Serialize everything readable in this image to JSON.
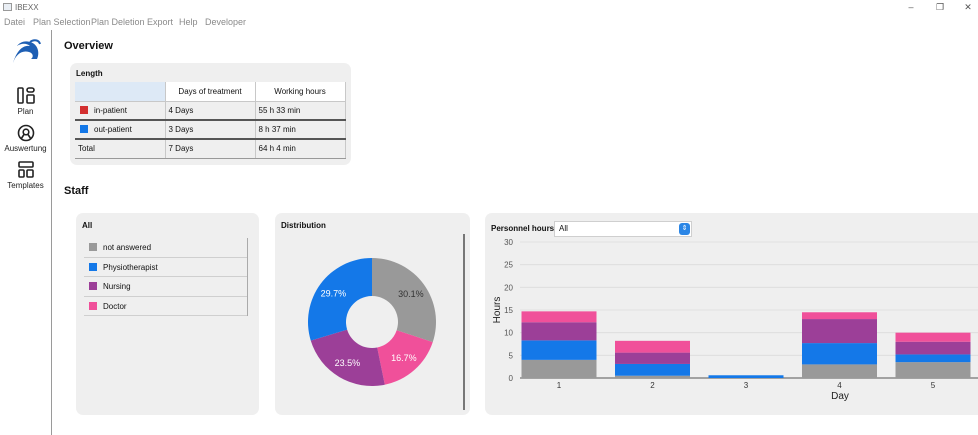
{
  "app": {
    "title": "IBEXX"
  },
  "menu": [
    "Datei",
    "Plan Selection",
    "Plan Deletion",
    "Export",
    "Help",
    "Developer"
  ],
  "sidebar": {
    "items": [
      {
        "label": "Plan",
        "icon": "plan-icon"
      },
      {
        "label": "Auswertung",
        "icon": "evaluation-icon"
      },
      {
        "label": "Templates",
        "icon": "templates-icon"
      }
    ],
    "logo_icon": "ibex-logo-icon"
  },
  "overview": {
    "title": "Overview",
    "length": {
      "label": "Length",
      "columns": [
        "",
        "Days of treatment",
        "Working hours"
      ],
      "rows": [
        {
          "name": "in-patient",
          "color": "#d32f2f",
          "days": "4 Days",
          "hours": "55 h 33 min"
        },
        {
          "name": "out-patient",
          "color": "#1478e8",
          "days": "3 Days",
          "hours": "8 h 37 min"
        },
        {
          "name": "Total",
          "color": "",
          "days": "7 Days",
          "hours": "64 h 4 min"
        }
      ]
    }
  },
  "staff": {
    "title": "Staff",
    "all": {
      "label": "All",
      "legend": [
        {
          "name": "not answered",
          "color": "#999999"
        },
        {
          "name": "Physiotherapist",
          "color": "#1478e8"
        },
        {
          "name": "Nursing",
          "color": "#9c3f98"
        },
        {
          "name": "Doctor",
          "color": "#f0509a"
        }
      ]
    },
    "distribution": {
      "label": "Distribution"
    },
    "personnel": {
      "label": "Personnel hours",
      "selected": "All"
    }
  },
  "colors": {
    "not_answered": "#999999",
    "physiotherapist": "#1478e8",
    "nursing": "#9c3f98",
    "doctor": "#f0509a"
  },
  "chart_data": [
    {
      "type": "pie",
      "slices": [
        {
          "category": "not answered",
          "value": 30.1,
          "label": "30.1%"
        },
        {
          "category": "Doctor",
          "value": 16.7,
          "label": "16.7%"
        },
        {
          "category": "Nursing",
          "value": 23.5,
          "label": "23.5%"
        },
        {
          "category": "Physiotherapist",
          "value": 29.7,
          "label": "29.7%"
        }
      ]
    },
    {
      "type": "bar",
      "stacked": true,
      "categories": [
        "1",
        "2",
        "3",
        "4",
        "5"
      ],
      "xlabel": "Day",
      "ylabel": "Hours",
      "ylim": [
        0,
        30
      ],
      "yticks": [
        0,
        5,
        10,
        15,
        20,
        25,
        30
      ],
      "series": [
        {
          "name": "not answered",
          "values": [
            4,
            0.5,
            0,
            3,
            3.5
          ]
        },
        {
          "name": "Physiotherapist",
          "values": [
            4.3,
            2.6,
            0.6,
            4.7,
            1.7
          ]
        },
        {
          "name": "Nursing",
          "values": [
            4,
            2.5,
            0,
            5.3,
            2.8
          ]
        },
        {
          "name": "Doctor",
          "values": [
            2.4,
            2.6,
            0,
            1.5,
            2
          ]
        }
      ]
    }
  ]
}
